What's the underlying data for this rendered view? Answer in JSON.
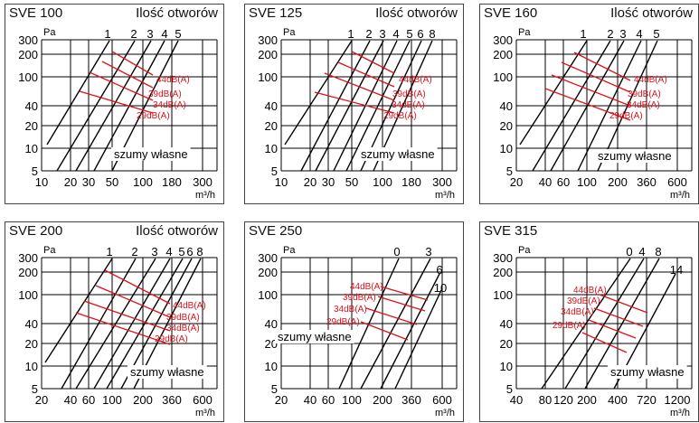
{
  "chart_data": [
    {
      "type": "line",
      "model": "SVE 100",
      "title": "Ilość otworów",
      "ylabel": "Pa",
      "xlabel": "m³/h",
      "y_ticks": [
        "300",
        "200",
        "100",
        "40",
        "20",
        "10",
        "5"
      ],
      "x_ticks": [
        "10",
        "20",
        "30",
        "50",
        "100",
        "180",
        "300"
      ],
      "curve_labels": [
        "1",
        "2",
        "3",
        "4",
        "5"
      ],
      "noise_levels": [
        "44dB(A)",
        "39dB(A)",
        "34dB(A)",
        "29dB(A)"
      ],
      "annotation": "szumy własne",
      "colors": {
        "lines": "#000000",
        "noise": "#e0101a"
      }
    },
    {
      "type": "line",
      "model": "SVE 125",
      "title": "Ilość otworów",
      "ylabel": "Pa",
      "xlabel": "m³/h",
      "y_ticks": [
        "300",
        "200",
        "100",
        "40",
        "20",
        "10",
        "5"
      ],
      "x_ticks": [
        "10",
        "20",
        "30",
        "50",
        "100",
        "180",
        "300"
      ],
      "curve_labels": [
        "1",
        "2",
        "3",
        "4",
        "5",
        "6",
        "8"
      ],
      "noise_levels": [
        "44dB(A)",
        "39dB(A)",
        "34dB(A)",
        "29dB(A)"
      ],
      "annotation": "szumy własne",
      "colors": {
        "lines": "#000000",
        "noise": "#e0101a"
      }
    },
    {
      "type": "line",
      "model": "SVE 160",
      "title": "Ilość otworów",
      "ylabel": "Pa",
      "xlabel": "m³/h",
      "y_ticks": [
        "300",
        "200",
        "100",
        "40",
        "20",
        "10",
        "5"
      ],
      "x_ticks": [
        "20",
        "40",
        "60",
        "100",
        "200",
        "360",
        "600"
      ],
      "curve_labels": [
        "1",
        "2",
        "3",
        "4",
        "5"
      ],
      "noise_levels": [
        "44dB(A)",
        "39dB(A)",
        "34dB(A)",
        "29dB(A)"
      ],
      "annotation": "szumy własne",
      "colors": {
        "lines": "#000000",
        "noise": "#e0101a"
      }
    },
    {
      "type": "line",
      "model": "SVE 200",
      "title": "Ilość otworów",
      "ylabel": "Pa",
      "xlabel": "m³/h",
      "y_ticks": [
        "300",
        "200",
        "100",
        "40",
        "20",
        "10",
        "5"
      ],
      "x_ticks": [
        "20",
        "40",
        "60",
        "100",
        "200",
        "360",
        "600"
      ],
      "curve_labels": [
        "1",
        "2",
        "3",
        "4",
        "5",
        "6",
        "8"
      ],
      "noise_levels": [
        "44dB(A)",
        "39dB(A)",
        "34dB(A)",
        "29dB(A)"
      ],
      "annotation": "szumy własne",
      "colors": {
        "lines": "#000000",
        "noise": "#e0101a"
      }
    },
    {
      "type": "line",
      "model": "SVE 250",
      "title": "",
      "ylabel": "Pa",
      "xlabel": "m³/h",
      "y_ticks": [
        "300",
        "200",
        "100",
        "40",
        "20",
        "10",
        "5"
      ],
      "x_ticks": [
        "20",
        "40",
        "60",
        "100",
        "200",
        "360",
        "600"
      ],
      "curve_labels": [
        "0",
        "3",
        "6",
        "10"
      ],
      "noise_levels": [
        "44dB(A)",
        "39dB(A)",
        "34dB(A)",
        "29dB(A)"
      ],
      "annotation": "szumy własne",
      "colors": {
        "lines": "#000000",
        "noise": "#e0101a"
      }
    },
    {
      "type": "line",
      "model": "SVE 315",
      "title": "",
      "ylabel": "Pa",
      "xlabel": "m³/h",
      "y_ticks": [
        "300",
        "200",
        "100",
        "40",
        "20",
        "10",
        "5"
      ],
      "x_ticks": [
        "40",
        "80",
        "120",
        "200",
        "400",
        "720",
        "1200"
      ],
      "curve_labels": [
        "0",
        "4",
        "8",
        "14"
      ],
      "noise_levels": [
        "44dB(A)",
        "39dB(A)",
        "34dB(A)",
        "29dB(A)"
      ],
      "annotation": "szumy własne",
      "colors": {
        "lines": "#000000",
        "noise": "#e0101a"
      }
    }
  ]
}
